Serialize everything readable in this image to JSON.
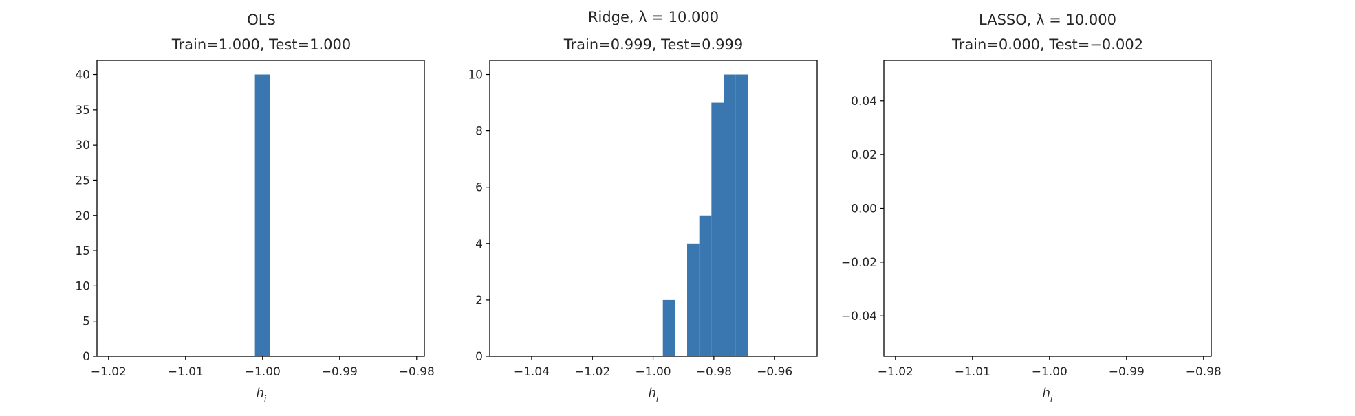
{
  "chart_data": [
    {
      "type": "bar",
      "title": "OLS",
      "subtitle": "Train=1.000, Test=1.000",
      "xlabel": "h_i",
      "ylabel": "",
      "xlim": [
        -1.0215,
        -0.979
      ],
      "ylim": [
        0,
        42
      ],
      "xticks": [
        -1.02,
        -1.01,
        -1.0,
        -0.99,
        -0.98
      ],
      "xtick_labels": [
        "−1.02",
        "−1.01",
        "−1.00",
        "−0.99",
        "−0.98"
      ],
      "yticks": [
        0,
        5,
        10,
        15,
        20,
        25,
        30,
        35,
        40
      ],
      "ytick_labels": [
        "0",
        "5",
        "10",
        "15",
        "20",
        "25",
        "30",
        "35",
        "40"
      ],
      "bins": [
        {
          "x0": -1.001,
          "x1": -0.999,
          "count": 40
        }
      ],
      "grid": false,
      "color": "#3a76af"
    },
    {
      "type": "bar",
      "title": "Ridge, λ = 10.000",
      "subtitle": "Train=0.999, Test=0.999",
      "xlabel": "h_i",
      "ylabel": "",
      "xlim": [
        -1.0538,
        -0.946
      ],
      "ylim": [
        0,
        10.5
      ],
      "xticks": [
        -1.04,
        -1.02,
        -1.0,
        -0.98,
        -0.96
      ],
      "xtick_labels": [
        "−1.04",
        "−1.02",
        "−1.00",
        "−0.98",
        "−0.96"
      ],
      "yticks": [
        0,
        2,
        4,
        6,
        8,
        10
      ],
      "ytick_labels": [
        "0",
        "2",
        "4",
        "6",
        "8",
        "10"
      ],
      "bins": [
        {
          "x0": -0.9968,
          "x1": -0.9928,
          "count": 2
        },
        {
          "x0": -0.9928,
          "x1": -0.9888,
          "count": 0
        },
        {
          "x0": -0.9888,
          "x1": -0.9848,
          "count": 4
        },
        {
          "x0": -0.9848,
          "x1": -0.9808,
          "count": 5
        },
        {
          "x0": -0.9808,
          "x1": -0.9768,
          "count": 9
        },
        {
          "x0": -0.9768,
          "x1": -0.9728,
          "count": 10
        },
        {
          "x0": -0.9728,
          "x1": -0.9688,
          "count": 10
        }
      ],
      "grid": false,
      "color": "#3a76af"
    },
    {
      "type": "bar",
      "title": "LASSO, λ = 10.000",
      "subtitle": "Train=0.000, Test=−0.002",
      "xlabel": "h_i",
      "ylabel": "",
      "xlim": [
        -1.0215,
        -0.979
      ],
      "ylim": [
        -0.055,
        0.055
      ],
      "xticks": [
        -1.02,
        -1.01,
        -1.0,
        -0.99,
        -0.98
      ],
      "xtick_labels": [
        "−1.02",
        "−1.01",
        "−1.00",
        "−0.99",
        "−0.98"
      ],
      "yticks": [
        -0.04,
        -0.02,
        0.0,
        0.02,
        0.04
      ],
      "ytick_labels": [
        "−0.04",
        "−0.02",
        "0.00",
        "0.02",
        "0.04"
      ],
      "bins": [],
      "grid": false,
      "color": "#3a76af"
    }
  ]
}
